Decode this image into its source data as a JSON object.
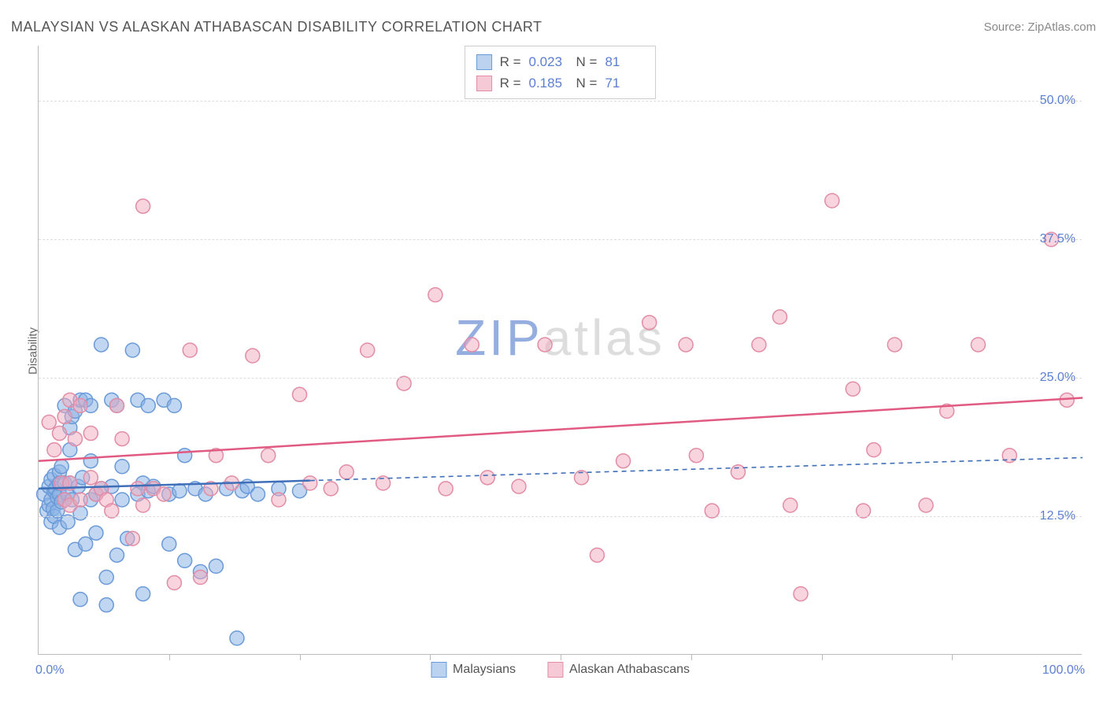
{
  "title": "MALAYSIAN VS ALASKAN ATHABASCAN DISABILITY CORRELATION CHART",
  "source": "Source: ZipAtlas.com",
  "ylabel": "Disability",
  "watermark_left": "ZIP",
  "watermark_right": "atlas",
  "chart": {
    "type": "scatter",
    "xlim": [
      0,
      100
    ],
    "ylim": [
      0,
      55
    ],
    "x_axis_min_label": "0.0%",
    "x_axis_max_label": "100.0%",
    "y_ticks": [
      {
        "v": 12.5,
        "label": "12.5%"
      },
      {
        "v": 25.0,
        "label": "25.0%"
      },
      {
        "v": 37.5,
        "label": "37.5%"
      },
      {
        "v": 50.0,
        "label": "50.0%"
      }
    ],
    "x_tick_positions": [
      12.5,
      25,
      37.5,
      50,
      62.5,
      75,
      87.5
    ],
    "grid_color": "#dddddd",
    "background_color": "#ffffff",
    "marker_radius": 9,
    "marker_stroke_width": 1.5,
    "trend_line_width": 2.5,
    "trend_dash": "6,5",
    "stats": [
      {
        "r": "0.023",
        "n": "81",
        "color_fill": "#bcd3f0",
        "color_stroke": "#6a9ad8"
      },
      {
        "r": "0.185",
        "n": "71",
        "color_fill": "#f5c9d5",
        "color_stroke": "#e38ca5"
      }
    ],
    "series": [
      {
        "name": "Malaysians",
        "color_fill": "rgba(140,180,230,0.55)",
        "color_stroke": "#6a9ad8",
        "trend_color": "#3f6fb8",
        "trend": {
          "x1": 0,
          "y1": 15.0,
          "x2": 100,
          "y2": 17.8,
          "solid_until_x": 26
        },
        "points": [
          [
            0.5,
            14.5
          ],
          [
            0.8,
            13.0
          ],
          [
            1.0,
            15.2
          ],
          [
            1.0,
            13.5
          ],
          [
            1.2,
            12.0
          ],
          [
            1.2,
            15.8
          ],
          [
            1.2,
            14.0
          ],
          [
            1.4,
            13.2
          ],
          [
            1.5,
            14.8
          ],
          [
            1.5,
            16.2
          ],
          [
            1.5,
            12.5
          ],
          [
            1.6,
            15.0
          ],
          [
            1.8,
            14.2
          ],
          [
            1.8,
            13.0
          ],
          [
            2.0,
            14.5
          ],
          [
            2.0,
            16.5
          ],
          [
            2.0,
            15.5
          ],
          [
            2.0,
            11.5
          ],
          [
            2.2,
            13.8
          ],
          [
            2.2,
            17.0
          ],
          [
            2.5,
            14.0
          ],
          [
            2.5,
            15.5
          ],
          [
            2.5,
            22.5
          ],
          [
            2.8,
            14.5
          ],
          [
            2.8,
            12.0
          ],
          [
            3.0,
            15.5
          ],
          [
            3.0,
            18.5
          ],
          [
            3.0,
            20.5
          ],
          [
            3.2,
            21.5
          ],
          [
            3.2,
            14.0
          ],
          [
            3.5,
            9.5
          ],
          [
            3.5,
            22.0
          ],
          [
            3.8,
            15.2
          ],
          [
            4.0,
            12.8
          ],
          [
            4.0,
            23.0
          ],
          [
            4.0,
            5.0
          ],
          [
            4.2,
            16.0
          ],
          [
            4.5,
            10.0
          ],
          [
            4.5,
            23.0
          ],
          [
            5.0,
            14.0
          ],
          [
            5.0,
            17.5
          ],
          [
            5.0,
            22.5
          ],
          [
            5.5,
            11.0
          ],
          [
            5.5,
            14.5
          ],
          [
            6.0,
            28.0
          ],
          [
            6.0,
            15.0
          ],
          [
            6.5,
            7.0
          ],
          [
            6.5,
            4.5
          ],
          [
            7.0,
            23.0
          ],
          [
            7.0,
            15.2
          ],
          [
            7.5,
            9.0
          ],
          [
            7.5,
            22.5
          ],
          [
            8.0,
            17.0
          ],
          [
            8.0,
            14.0
          ],
          [
            8.5,
            10.5
          ],
          [
            9.0,
            27.5
          ],
          [
            9.5,
            14.5
          ],
          [
            9.5,
            23.0
          ],
          [
            10.0,
            5.5
          ],
          [
            10.0,
            15.5
          ],
          [
            10.5,
            22.5
          ],
          [
            10.5,
            14.8
          ],
          [
            11.0,
            15.2
          ],
          [
            12.0,
            23.0
          ],
          [
            12.5,
            14.5
          ],
          [
            12.5,
            10.0
          ],
          [
            13.0,
            22.5
          ],
          [
            13.5,
            14.8
          ],
          [
            14.0,
            18.0
          ],
          [
            14.0,
            8.5
          ],
          [
            15.0,
            15.0
          ],
          [
            15.5,
            7.5
          ],
          [
            16.0,
            14.5
          ],
          [
            17.0,
            8.0
          ],
          [
            18.0,
            15.0
          ],
          [
            19.0,
            1.5
          ],
          [
            19.5,
            14.8
          ],
          [
            20.0,
            15.2
          ],
          [
            21.0,
            14.5
          ],
          [
            23.0,
            15.0
          ],
          [
            25.0,
            14.8
          ]
        ]
      },
      {
        "name": "Alaskan Athabascans",
        "color_fill": "rgba(240,170,190,0.50)",
        "color_stroke": "#e38ca5",
        "trend_color": "#e05a82",
        "trend": {
          "x1": 0,
          "y1": 17.5,
          "x2": 100,
          "y2": 23.2,
          "solid_until_x": 100
        },
        "points": [
          [
            1.0,
            21.0
          ],
          [
            1.5,
            18.5
          ],
          [
            2.0,
            20.0
          ],
          [
            2.2,
            15.5
          ],
          [
            2.5,
            21.5
          ],
          [
            2.5,
            14.0
          ],
          [
            3.0,
            23.0
          ],
          [
            3.0,
            15.5
          ],
          [
            3.0,
            13.5
          ],
          [
            3.5,
            19.5
          ],
          [
            4.0,
            22.5
          ],
          [
            4.0,
            14.0
          ],
          [
            5.0,
            16.0
          ],
          [
            5.0,
            20.0
          ],
          [
            5.5,
            14.5
          ],
          [
            6.0,
            15.0
          ],
          [
            6.5,
            14.0
          ],
          [
            7.0,
            13.0
          ],
          [
            7.5,
            22.5
          ],
          [
            8.0,
            19.5
          ],
          [
            9.0,
            10.5
          ],
          [
            9.5,
            15.0
          ],
          [
            10.0,
            40.5
          ],
          [
            10.0,
            13.5
          ],
          [
            11.0,
            15.0
          ],
          [
            12.0,
            14.5
          ],
          [
            13.0,
            6.5
          ],
          [
            14.5,
            27.5
          ],
          [
            15.5,
            7.0
          ],
          [
            16.5,
            15.0
          ],
          [
            17.0,
            18.0
          ],
          [
            18.5,
            15.5
          ],
          [
            20.5,
            27.0
          ],
          [
            22.0,
            18.0
          ],
          [
            23.0,
            14.0
          ],
          [
            25.0,
            23.5
          ],
          [
            26.0,
            15.5
          ],
          [
            28.0,
            15.0
          ],
          [
            29.5,
            16.5
          ],
          [
            31.5,
            27.5
          ],
          [
            33.0,
            15.5
          ],
          [
            35.0,
            24.5
          ],
          [
            38.0,
            32.5
          ],
          [
            39.0,
            15.0
          ],
          [
            41.5,
            28.0
          ],
          [
            43.0,
            16.0
          ],
          [
            46.0,
            15.2
          ],
          [
            48.5,
            28.0
          ],
          [
            52.0,
            16.0
          ],
          [
            53.5,
            9.0
          ],
          [
            56.0,
            17.5
          ],
          [
            58.5,
            30.0
          ],
          [
            62.0,
            28.0
          ],
          [
            63.0,
            18.0
          ],
          [
            64.5,
            13.0
          ],
          [
            67.0,
            16.5
          ],
          [
            69.0,
            28.0
          ],
          [
            71.0,
            30.5
          ],
          [
            72.0,
            13.5
          ],
          [
            73.0,
            5.5
          ],
          [
            76.0,
            41.0
          ],
          [
            78.0,
            24.0
          ],
          [
            79.0,
            13.0
          ],
          [
            80.0,
            18.5
          ],
          [
            82.0,
            28.0
          ],
          [
            85.0,
            13.5
          ],
          [
            87.0,
            22.0
          ],
          [
            90.0,
            28.0
          ],
          [
            93.0,
            18.0
          ],
          [
            97.0,
            37.5
          ],
          [
            98.5,
            23.0
          ]
        ]
      }
    ],
    "legend_items": [
      {
        "label": "Malaysians",
        "fill": "#bcd3f0",
        "stroke": "#6a9ad8"
      },
      {
        "label": "Alaskan Athabascans",
        "fill": "#f5c9d5",
        "stroke": "#e38ca5"
      }
    ]
  }
}
